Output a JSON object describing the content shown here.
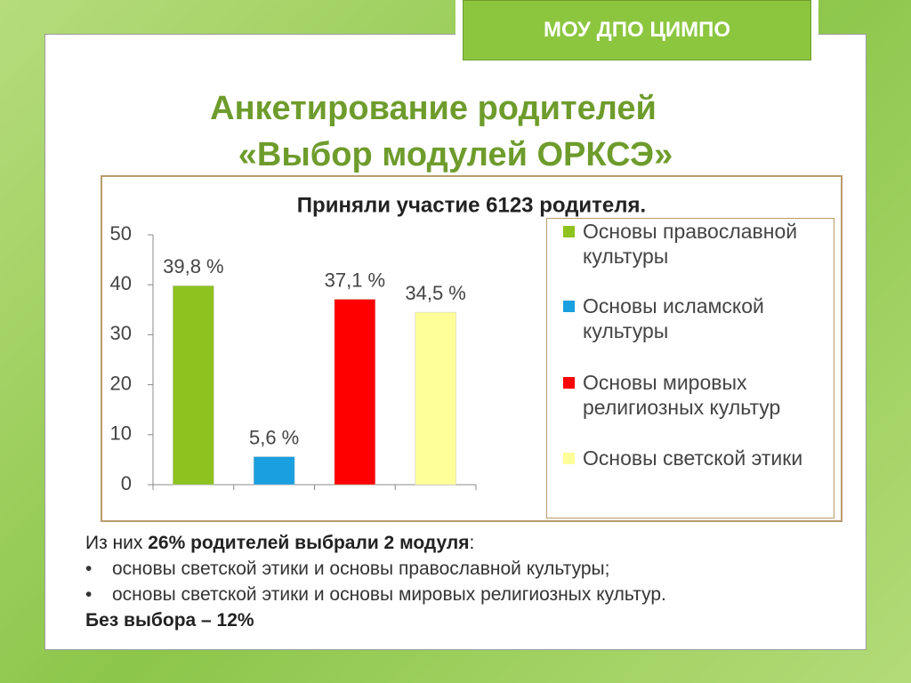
{
  "header": {
    "badge": "МОУ ДПО ЦИМПО",
    "title_lines": [
      "Анкетирование родителей",
      "«Выбор модулей ОРКСЭ»"
    ]
  },
  "chart_data": {
    "type": "bar",
    "title": "Приняли участие 6123  родителя.",
    "categories": [
      null,
      null,
      null,
      null
    ],
    "series": [
      {
        "name": "Основы православной культуры",
        "color": "#8dc21f",
        "values": [
          39.8,
          null,
          null,
          null
        ],
        "value_labels": [
          "39,8 %",
          null,
          null,
          null
        ]
      },
      {
        "name": "Основы исламской культуры",
        "color": "#1a9fe0",
        "values": [
          null,
          5.6,
          null,
          null
        ],
        "value_labels": [
          null,
          "5,6 %",
          null,
          null
        ]
      },
      {
        "name": "Основы мировых религиозных культур",
        "color": "#ff0000",
        "values": [
          null,
          null,
          37.1,
          null
        ],
        "value_labels": [
          null,
          null,
          "37,1 %",
          null
        ]
      },
      {
        "name": "Основы светской этики",
        "color": "#ffff99",
        "values": [
          null,
          null,
          null,
          34.5
        ],
        "value_labels": [
          null,
          null,
          null,
          "34,5 %"
        ]
      }
    ],
    "ylim": [
      0,
      50
    ],
    "yticks": [
      0,
      10,
      20,
      30,
      40,
      50
    ],
    "grid": false,
    "legend": "right"
  },
  "body": {
    "intro": "Из них ",
    "intro_bold": "26% родителей выбрали 2 модуля",
    "intro_end": ":",
    "bullets": [
      "основы светской этики и основы православной культуры;",
      "основы светской этики и основы мировых религиозных культур."
    ],
    "footer": "Без выбора – 12%"
  }
}
